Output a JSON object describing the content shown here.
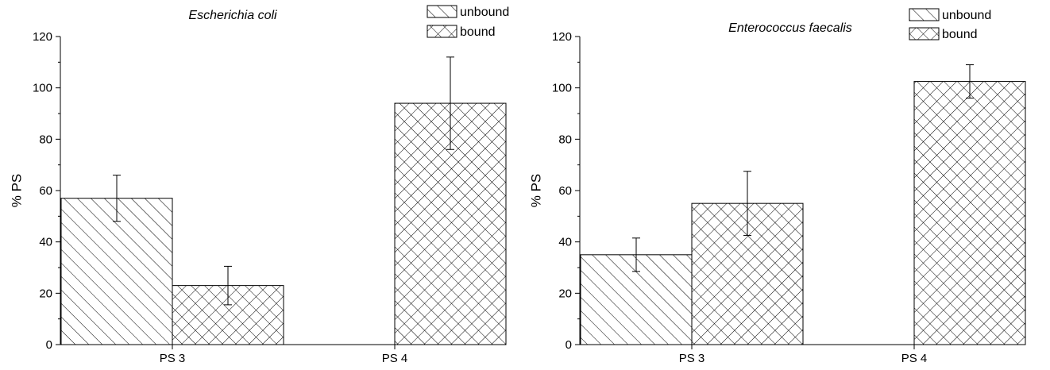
{
  "chart_data": [
    {
      "type": "bar",
      "title": "Escherichia coli",
      "xlabel": "",
      "ylabel": "% PS",
      "ylim": [
        0,
        120
      ],
      "yticks": [
        0,
        20,
        40,
        60,
        80,
        100,
        120
      ],
      "categories": [
        "PS 3",
        "PS 4"
      ],
      "series": [
        {
          "name": "unbound",
          "pattern": "hatch-diagonal",
          "values": [
            57,
            0
          ],
          "errors": [
            9,
            0
          ]
        },
        {
          "name": "bound",
          "pattern": "crosshatch",
          "values": [
            23,
            94
          ],
          "errors": [
            7.5,
            18
          ]
        }
      ],
      "legend": "top-right",
      "grid": false
    },
    {
      "type": "bar",
      "title": "Enterococcus faecalis",
      "xlabel": "",
      "ylabel": "% PS",
      "ylim": [
        0,
        120
      ],
      "yticks": [
        0,
        20,
        40,
        60,
        80,
        100,
        120
      ],
      "categories": [
        "PS 3",
        "PS 4"
      ],
      "series": [
        {
          "name": "unbound",
          "pattern": "hatch-diagonal",
          "values": [
            35,
            0
          ],
          "errors": [
            6.5,
            0
          ]
        },
        {
          "name": "bound",
          "pattern": "crosshatch",
          "values": [
            55,
            102.5
          ],
          "errors": [
            12.5,
            6.5
          ]
        }
      ],
      "legend": "top-right",
      "grid": false
    }
  ],
  "colors": {
    "ink": "#000000",
    "background": "#ffffff"
  }
}
